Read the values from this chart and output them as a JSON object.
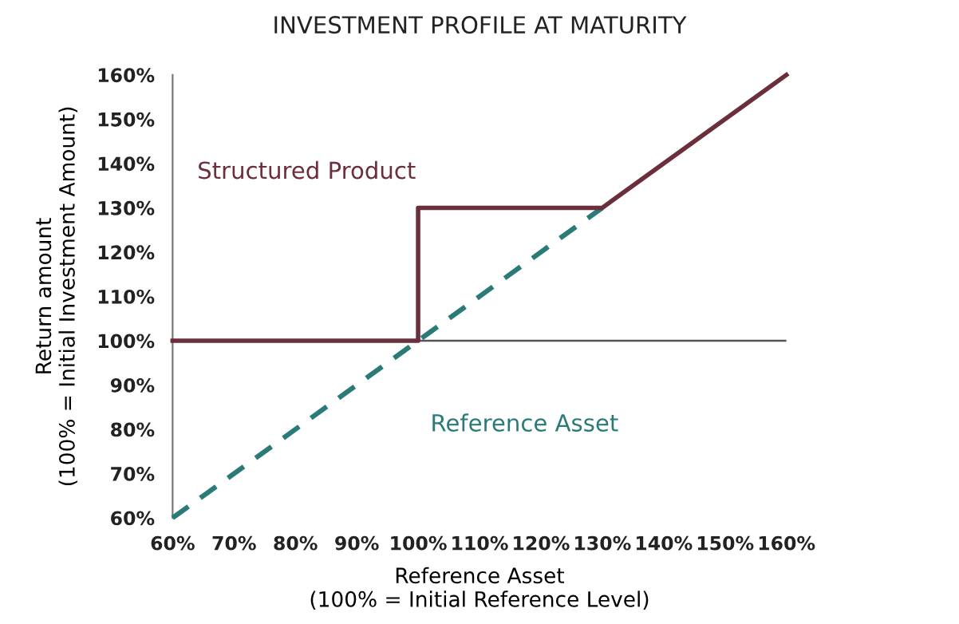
{
  "chart_data": {
    "type": "line",
    "title": "INVESTMENT PROFILE AT MATURITY",
    "xlabel": "Reference Asset\n(100% = Initial Reference Level)",
    "ylabel": "Return amount\n(100% = Initial Investment Amount)",
    "series": [
      {
        "name": "Structured Product",
        "color": "#6b2f3c",
        "x": [
          60,
          100,
          100,
          130,
          160
        ],
        "values": [
          100,
          100,
          130,
          130,
          160
        ],
        "line_style": "solid"
      },
      {
        "name": "Reference Asset",
        "color": "#2a7a78",
        "x": [
          60,
          130
        ],
        "values": [
          60,
          130
        ],
        "line_style": "dashed"
      }
    ],
    "xlim": [
      60,
      160
    ],
    "ylim": [
      60,
      160
    ],
    "xticks": [
      {
        "value": 60,
        "label": "60%"
      },
      {
        "value": 70,
        "label": "70%"
      },
      {
        "value": 80,
        "label": "80%"
      },
      {
        "value": 90,
        "label": "90%"
      },
      {
        "value": 100,
        "label": "100%"
      },
      {
        "value": 110,
        "label": "110%"
      },
      {
        "value": 120,
        "label": "120%"
      },
      {
        "value": 130,
        "label": "130%"
      },
      {
        "value": 140,
        "label": "140%"
      },
      {
        "value": 150,
        "label": "150%"
      },
      {
        "value": 160,
        "label": "160%"
      }
    ],
    "yticks": [
      {
        "value": 60,
        "label": "60%"
      },
      {
        "value": 70,
        "label": "70%"
      },
      {
        "value": 80,
        "label": "80%"
      },
      {
        "value": 90,
        "label": "90%"
      },
      {
        "value": 100,
        "label": "100%"
      },
      {
        "value": 110,
        "label": "110%"
      },
      {
        "value": 120,
        "label": "120%"
      },
      {
        "value": 130,
        "label": "130%"
      },
      {
        "value": 140,
        "label": "140%"
      },
      {
        "value": 150,
        "label": "150%"
      },
      {
        "value": 160,
        "label": "160%"
      }
    ],
    "ref_lines": [
      {
        "axis": "y",
        "value": 100,
        "color": "#555555"
      }
    ],
    "grid": false,
    "legend": false,
    "marker": "none"
  }
}
